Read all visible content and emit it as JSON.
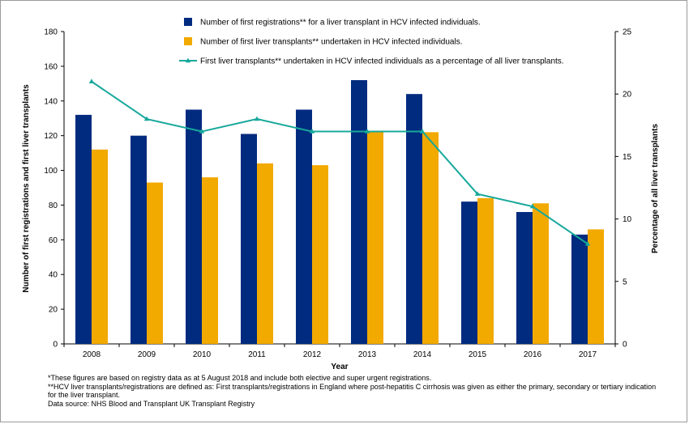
{
  "chart_data": {
    "type": "bar",
    "categories": [
      "2008",
      "2009",
      "2010",
      "2011",
      "2012",
      "2013",
      "2014",
      "2015",
      "2016",
      "2017"
    ],
    "series": [
      {
        "name": "Number of first registrations** for a liver transplant in HCV infected individuals.",
        "type": "bar",
        "axis": "left",
        "color": "#002B7F",
        "values": [
          132,
          120,
          135,
          121,
          135,
          152,
          144,
          82,
          76,
          63
        ]
      },
      {
        "name": "Number of first liver transplants** undertaken in HCV infected individuals.",
        "type": "bar",
        "axis": "left",
        "color": "#F2A900",
        "values": [
          112,
          93,
          96,
          104,
          103,
          122,
          122,
          84,
          81,
          66
        ]
      },
      {
        "name": "First liver transplants** undertaken in HCV infected individuals as a percentage of all liver transplants.",
        "type": "line",
        "axis": "right",
        "color": "#17A89B",
        "values": [
          21,
          18,
          17,
          18,
          17,
          17,
          17,
          12,
          11,
          8
        ]
      }
    ],
    "xlabel": "Year",
    "ylabel": "Number of first registrations and first liver transplants",
    "y2label": "Percentage of all liver transplants",
    "ylim": [
      0,
      180
    ],
    "y2lim": [
      0,
      25
    ],
    "yticks": [
      0,
      20,
      40,
      60,
      80,
      100,
      120,
      140,
      160,
      180
    ],
    "y2ticks": [
      0,
      5,
      10,
      15,
      20,
      25
    ],
    "grid": false,
    "legend": "top"
  },
  "notes": [
    "*These figures are based on registry data as at 5 August 2018 and include both elective and super urgent registrations.",
    "**HCV liver transplants/registrations are defined as: First transplants/registrations in England where post-hepatitis C cirrhosis was given as either the primary, secondary or tertiary indication for the liver transplant.",
    "Data source: NHS Blood and Transplant UK Transplant Registry"
  ]
}
